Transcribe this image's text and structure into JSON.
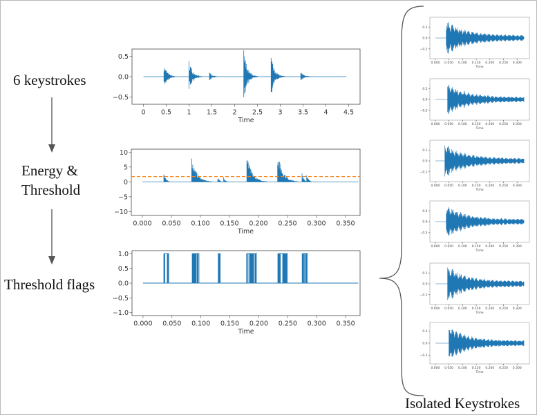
{
  "labels": {
    "step1": "6 keystrokes",
    "step2_line1": "Energy &",
    "step2_line2": "Threshold",
    "step3": "Threshold flags",
    "output": "Isolated Keystrokes"
  },
  "colors": {
    "signal": "#1f77b4",
    "threshold": "#ff7f0e",
    "arrow": "#555555",
    "frame": "#888888"
  },
  "chart_data": [
    {
      "id": "audio",
      "type": "line",
      "xlabel": "Time",
      "xlim": [
        -0.25,
        4.75
      ],
      "ylim": [
        -0.68,
        0.68
      ],
      "xticks": [
        "0",
        "0.5",
        "1",
        "1.5",
        "2",
        "2.5",
        "3",
        "3.5",
        "4",
        "4.5"
      ],
      "xtick_values": [
        0,
        0.5,
        1,
        1.5,
        2,
        2.5,
        3,
        3.5,
        4,
        4.5
      ],
      "yticks": [
        "0.5",
        "0.0",
        "−0.5"
      ],
      "ytick_values": [
        0.5,
        0,
        -0.5
      ],
      "x_end": 4.45,
      "bursts": [
        {
          "t": 0.45,
          "amp": 0.32
        },
        {
          "t": 1.0,
          "amp": 0.45
        },
        {
          "t": 1.45,
          "amp": 0.1
        },
        {
          "t": 2.2,
          "amp": 0.7
        },
        {
          "t": 2.8,
          "amp": 0.56
        },
        {
          "t": 3.45,
          "amp": 0.14
        }
      ]
    },
    {
      "id": "energy",
      "type": "line",
      "xlabel": "Time",
      "xlim": [
        -0.019,
        0.375
      ],
      "ylim": [
        -11.3,
        11
      ],
      "xticks": [
        "0.000",
        "0.050",
        "0.100",
        "0.150",
        "0.200",
        "0.250",
        "0.300",
        "0.350"
      ],
      "xtick_values": [
        0,
        0.05,
        0.1,
        0.15,
        0.2,
        0.25,
        0.3,
        0.35
      ],
      "yticks": [
        "10",
        "5",
        "0",
        "−5",
        "−10"
      ],
      "ytick_values": [
        10,
        5,
        0,
        -5,
        -10
      ],
      "x_end": 0.372,
      "threshold": 1.8,
      "bursts": [
        {
          "t": 0.037,
          "amp": 3.8
        },
        {
          "t": 0.085,
          "amp": 8.5
        },
        {
          "t": 0.13,
          "amp": 1.8
        },
        {
          "t": 0.14,
          "amp": 1.8
        },
        {
          "t": 0.18,
          "amp": 9.2
        },
        {
          "t": 0.233,
          "amp": 10.3
        },
        {
          "t": 0.275,
          "amp": 3.0
        },
        {
          "t": 0.283,
          "amp": 2.8
        }
      ]
    },
    {
      "id": "flags",
      "type": "line",
      "xlabel": "Time",
      "xlim": [
        -0.019,
        0.375
      ],
      "ylim": [
        -1.1,
        1.1
      ],
      "xticks": [
        "0.000",
        "0.050",
        "0.100",
        "0.150",
        "0.200",
        "0.250",
        "0.300",
        "0.350"
      ],
      "xtick_values": [
        0,
        0.05,
        0.1,
        0.15,
        0.2,
        0.25,
        0.3,
        0.35
      ],
      "yticks": [
        "1.0",
        "0.5",
        "0.0",
        "−0.5",
        "−1.0"
      ],
      "ytick_values": [
        1,
        0.5,
        0,
        -0.5,
        -1
      ],
      "x_end": 0.372,
      "flag_intervals": [
        [
          0.036,
          0.045
        ],
        [
          0.085,
          0.097
        ],
        [
          0.13,
          0.134
        ],
        [
          0.179,
          0.197
        ],
        [
          0.233,
          0.25
        ],
        [
          0.275,
          0.285
        ]
      ]
    },
    {
      "id": "key1",
      "type": "line",
      "xlabel": "Time",
      "ylim": [
        -0.38,
        0.38
      ],
      "yticks": [
        "0.2",
        "0.0",
        "−0.2"
      ],
      "ytick_values": [
        0.2,
        0,
        -0.2
      ],
      "onset": 0.04,
      "amp": 0.33
    },
    {
      "id": "key2",
      "type": "line",
      "xlabel": "Time",
      "ylim": [
        -0.95,
        0.95
      ],
      "yticks": [
        "0.5",
        "0.0",
        "−0.5"
      ],
      "ytick_values": [
        0.5,
        0,
        -0.5
      ],
      "onset": 0.045,
      "amp": 0.75
    },
    {
      "id": "key3",
      "type": "line",
      "xlabel": "Time",
      "ylim": [
        -0.19,
        0.19
      ],
      "yticks": [
        "0.1",
        "0.0",
        "−0.1"
      ],
      "ytick_values": [
        0.1,
        0,
        -0.1
      ],
      "onset": 0.035,
      "amp": 0.16
    },
    {
      "id": "key4",
      "type": "line",
      "xlabel": "Time",
      "ylim": [
        -0.95,
        0.95
      ],
      "yticks": [
        "0.5",
        "0.0",
        "−0.5"
      ],
      "ytick_values": [
        0.5,
        0,
        -0.5
      ],
      "onset": 0.04,
      "amp": 0.8
    },
    {
      "id": "key5",
      "type": "line",
      "xlabel": "Time",
      "ylim": [
        -0.19,
        0.19
      ],
      "yticks": [
        "0.1",
        "0.0",
        "−0.1"
      ],
      "ytick_values": [
        0.1,
        0,
        -0.1
      ],
      "onset": 0.045,
      "amp": 0.17
    },
    {
      "id": "key6",
      "type": "line",
      "xlabel": "Time",
      "ylim": [
        -0.34,
        0.34
      ],
      "yticks": [
        "0.2",
        "0.0",
        "−0.2"
      ],
      "ytick_values": [
        0.2,
        0,
        -0.2
      ],
      "onset": 0.05,
      "amp": 0.29
    }
  ],
  "key_xticks": [
    "0.000",
    "0.050",
    "0.100",
    "0.150",
    "0.200",
    "0.250",
    "0.300"
  ],
  "key_xtick_values": [
    0,
    0.05,
    0.1,
    0.15,
    0.2,
    0.25,
    0.3
  ],
  "key_xlim": [
    -0.02,
    0.345
  ],
  "key_x_end": 0.325
}
